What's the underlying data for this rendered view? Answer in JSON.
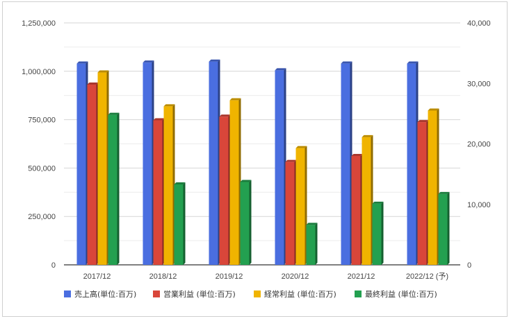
{
  "chart_data": {
    "type": "bar",
    "categories": [
      "2017/12",
      "2018/12",
      "2019/12",
      "2020/12",
      "2021/12",
      "2022/12 (予)"
    ],
    "series": [
      {
        "name": "売上高(単位:百万)",
        "axis": "left",
        "color": "#4a6ee0",
        "values": [
          1040000,
          1045000,
          1050000,
          1005000,
          1040000,
          1040000
        ]
      },
      {
        "name": "営業利益 (単位:百万)",
        "axis": "right",
        "color": "#d9463a",
        "values": [
          29800,
          23900,
          24500,
          17000,
          18000,
          23600
        ]
      },
      {
        "name": "経常利益 (単位:百万)",
        "axis": "right",
        "color": "#f0b400",
        "values": [
          31800,
          26200,
          27200,
          19300,
          21100,
          25500
        ]
      },
      {
        "name": "最終利益 (単位:百万)",
        "axis": "right",
        "color": "#23a050",
        "values": [
          24800,
          13300,
          13700,
          6600,
          10100,
          11700
        ]
      }
    ],
    "y_left": {
      "ylim": [
        0,
        1250000
      ],
      "ticks": [
        "0",
        "250,000",
        "500,000",
        "750,000",
        "1,000,000",
        "1,250,000"
      ],
      "tick_values": [
        0,
        250000,
        500000,
        750000,
        1000000,
        1250000
      ]
    },
    "y_right": {
      "ylim": [
        0,
        40000
      ],
      "ticks": [
        "0",
        "10,000",
        "20,000",
        "30,000",
        "40,000"
      ],
      "tick_values": [
        0,
        10000,
        20000,
        30000,
        40000
      ]
    },
    "grid": true,
    "legend_position": "bottom"
  }
}
